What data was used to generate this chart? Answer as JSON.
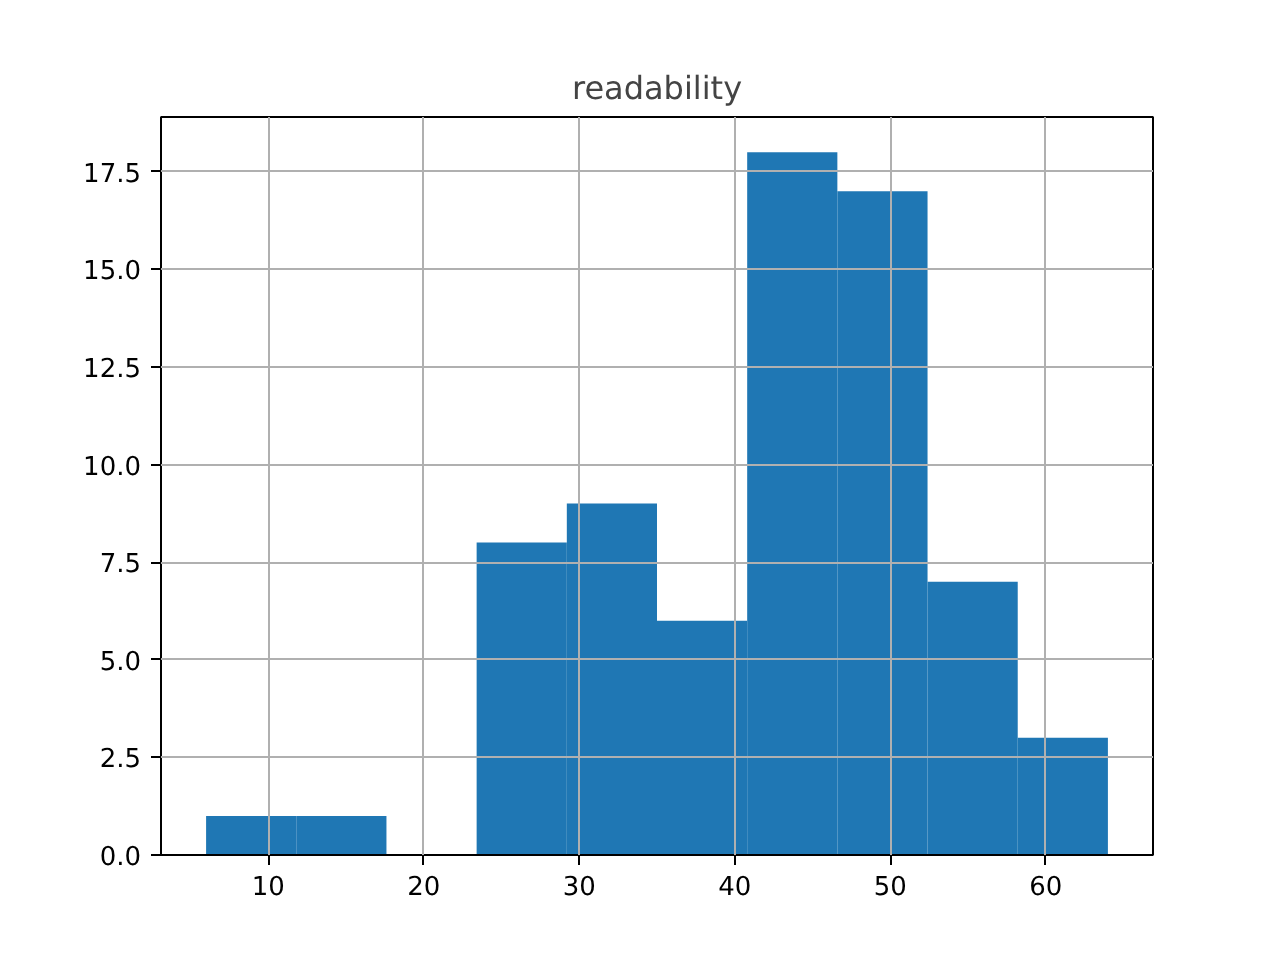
{
  "chart_data": {
    "type": "histogram",
    "title": "readability",
    "bins": [
      6.0,
      11.8,
      17.6,
      23.4,
      29.2,
      35.0,
      40.8,
      46.6,
      52.4,
      58.2,
      64.0
    ],
    "values": [
      1,
      1,
      0,
      8,
      9,
      6,
      18,
      17,
      7,
      3
    ],
    "color": "#1f77b4",
    "xlim": [
      3.1,
      66.9
    ],
    "xticks": [
      10,
      20,
      30,
      40,
      50,
      60
    ],
    "ylim": [
      0,
      18.9
    ],
    "yticks": [
      {
        "value": 0,
        "label": "0.0"
      },
      2.5,
      {
        "value": 5,
        "label": "5.0"
      },
      7.5,
      {
        "value": 10,
        "label": "10.0"
      },
      12.5,
      {
        "value": 15,
        "label": "15.0"
      },
      17.5
    ],
    "grid": true
  }
}
